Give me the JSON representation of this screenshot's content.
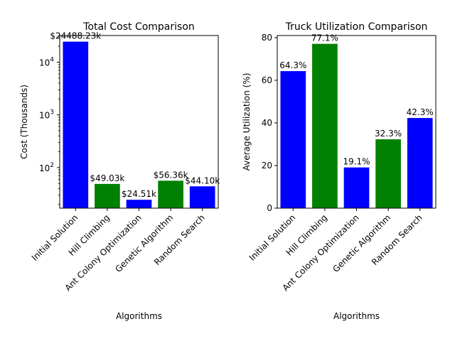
{
  "chart_data": [
    {
      "type": "bar",
      "title": "Total Cost Comparison",
      "xlabel": "Algorithms",
      "ylabel": "Cost (Thousands)",
      "yscale": "log",
      "ylim": [
        17,
        32000
      ],
      "yticks": [
        100,
        1000,
        10000
      ],
      "ytick_labels_base": "10",
      "ytick_labels_exp": [
        "2",
        "3",
        "4"
      ],
      "categories": [
        "Initial Solution",
        "Hill Climbing",
        "Ant Colony Optimization",
        "Genetic Algorithm",
        "Random Search"
      ],
      "values": [
        24488.23,
        49.03,
        24.51,
        56.36,
        44.1
      ],
      "data_labels": [
        "$24488.23k",
        "$49.03k",
        "$24.51k",
        "$56.36k",
        "$44.10k"
      ],
      "colors": [
        "#0000ff",
        "#008000",
        "#0000ff",
        "#008000",
        "#0000ff"
      ],
      "grid": false
    },
    {
      "type": "bar",
      "title": "Truck Utilization Comparison",
      "xlabel": "Algorithms",
      "ylabel": "Average Utilization (%)",
      "yscale": "linear",
      "ylim": [
        0,
        81
      ],
      "yticks": [
        0,
        20,
        40,
        60,
        80
      ],
      "ytick_labels": [
        "0",
        "20",
        "40",
        "60",
        "80"
      ],
      "categories": [
        "Initial Solution",
        "Hill Climbing",
        "Ant Colony Optimization",
        "Genetic Algorithm",
        "Random Search"
      ],
      "values": [
        64.3,
        77.1,
        19.1,
        32.3,
        42.3
      ],
      "data_labels": [
        "64.3%",
        "77.1%",
        "19.1%",
        "32.3%",
        "42.3%"
      ],
      "colors": [
        "#0000ff",
        "#008000",
        "#0000ff",
        "#008000",
        "#0000ff"
      ],
      "grid": false
    }
  ]
}
